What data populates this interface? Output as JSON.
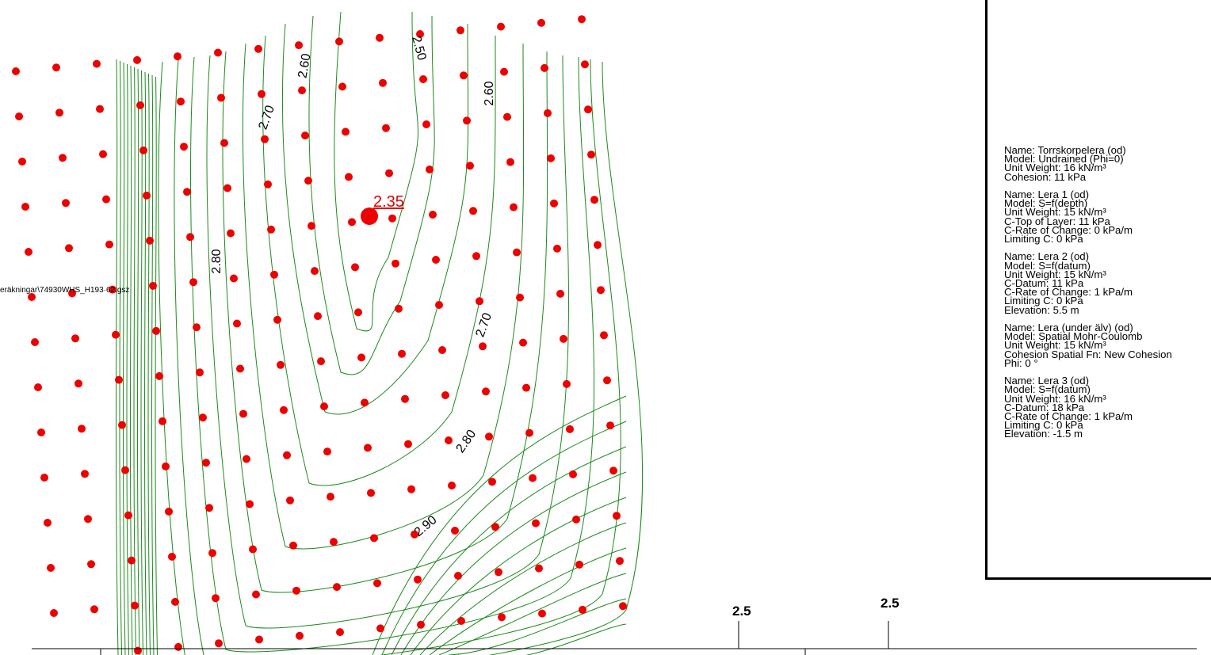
{
  "file_path": "eräkningar\\74930WHS_H193·62.gsz",
  "critical_factor": "2.35",
  "contour_labels": [
    "2.50",
    "2.60",
    "2.60",
    "2.70",
    "2.80",
    "2.70",
    "2.80",
    "2.90"
  ],
  "axis_labels": [
    "2.5",
    "2.5"
  ],
  "materials": [
    {
      "name": "Name: Torrskorpelera (od)",
      "lines": [
        "Model: Undrained (Phi=0)",
        "Unit Weight: 16 kN/m³",
        "Cohesion: 11 kPa"
      ]
    },
    {
      "name": "Name: Lera 1 (od)",
      "lines": [
        "Model: S=f(depth)",
        "Unit Weight: 15 kN/m³",
        "C-Top of Layer: 11 kPa",
        "C-Rate of Change: 0 kPa/m",
        "Limiting C: 0 kPa"
      ]
    },
    {
      "name": "Name: Lera 2 (od)",
      "lines": [
        "Model: S=f(datum)",
        "Unit Weight: 15 kN/m³",
        "C-Datum: 11 kPa",
        "C-Rate of Change: 1 kPa/m",
        "Limiting C: 0 kPa",
        "Elevation: 5.5 m"
      ]
    },
    {
      "name": "Name: Lera (under älv) (od)",
      "lines": [
        "Model: Spatial Mohr-Coulomb",
        "Unit Weight: 15 kN/m³",
        "Cohesion Spatial Fn: New Cohesion",
        "Phi: 0 °"
      ]
    },
    {
      "name": "Name: Lera 3 (od)",
      "lines": [
        "Model: S=f(datum)",
        "Unit Weight: 16 kN/m³",
        "C-Datum: 18 kPa",
        "C-Rate of Change: 1 kPa/m",
        "Limiting C: 0 kPa",
        "Elevation: -1.5 m"
      ]
    }
  ],
  "colors": {
    "grid_point": "#ee0000",
    "contour": "#1a8a1a",
    "text": "#000000"
  }
}
